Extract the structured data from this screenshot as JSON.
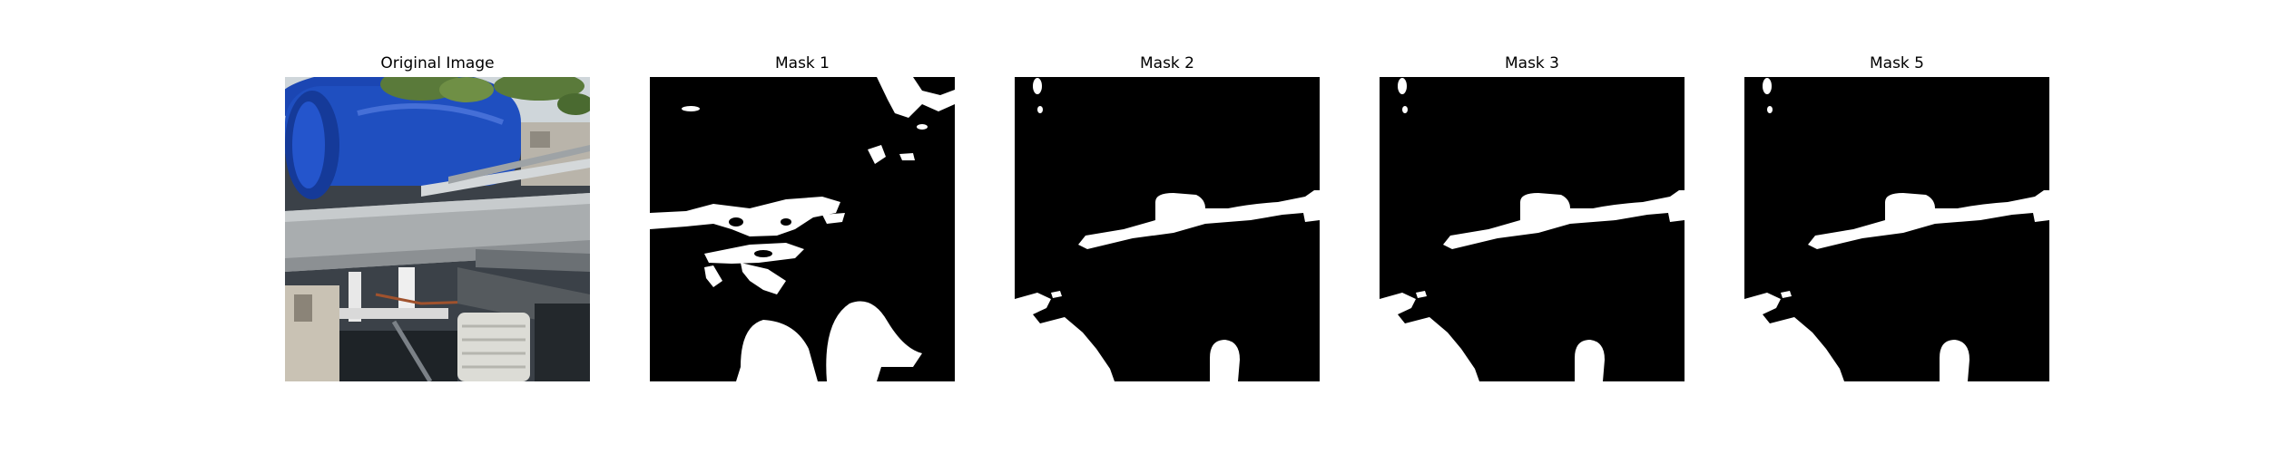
{
  "figure": {
    "panels": [
      {
        "id": "original",
        "title": "Original Image",
        "kind": "photo"
      },
      {
        "id": "mask1",
        "title": "Mask 1",
        "kind": "mask",
        "mask_shape": "mask-1-shape"
      },
      {
        "id": "mask2",
        "title": "Mask 2",
        "kind": "mask",
        "mask_shape": "mask-2-shape"
      },
      {
        "id": "mask3",
        "title": "Mask 3",
        "kind": "mask",
        "mask_shape": "mask-2-shape"
      },
      {
        "id": "mask5",
        "title": "Mask 5",
        "kind": "mask",
        "mask_shape": "mask-2-shape"
      }
    ],
    "colors": {
      "background": "#ffffff",
      "mask_background": "#000000",
      "mask_foreground": "#ffffff",
      "barrel_blue": "#1f4fc0",
      "rail_gray": "#a9adaf",
      "foliage_green": "#5a7a3a"
    }
  }
}
